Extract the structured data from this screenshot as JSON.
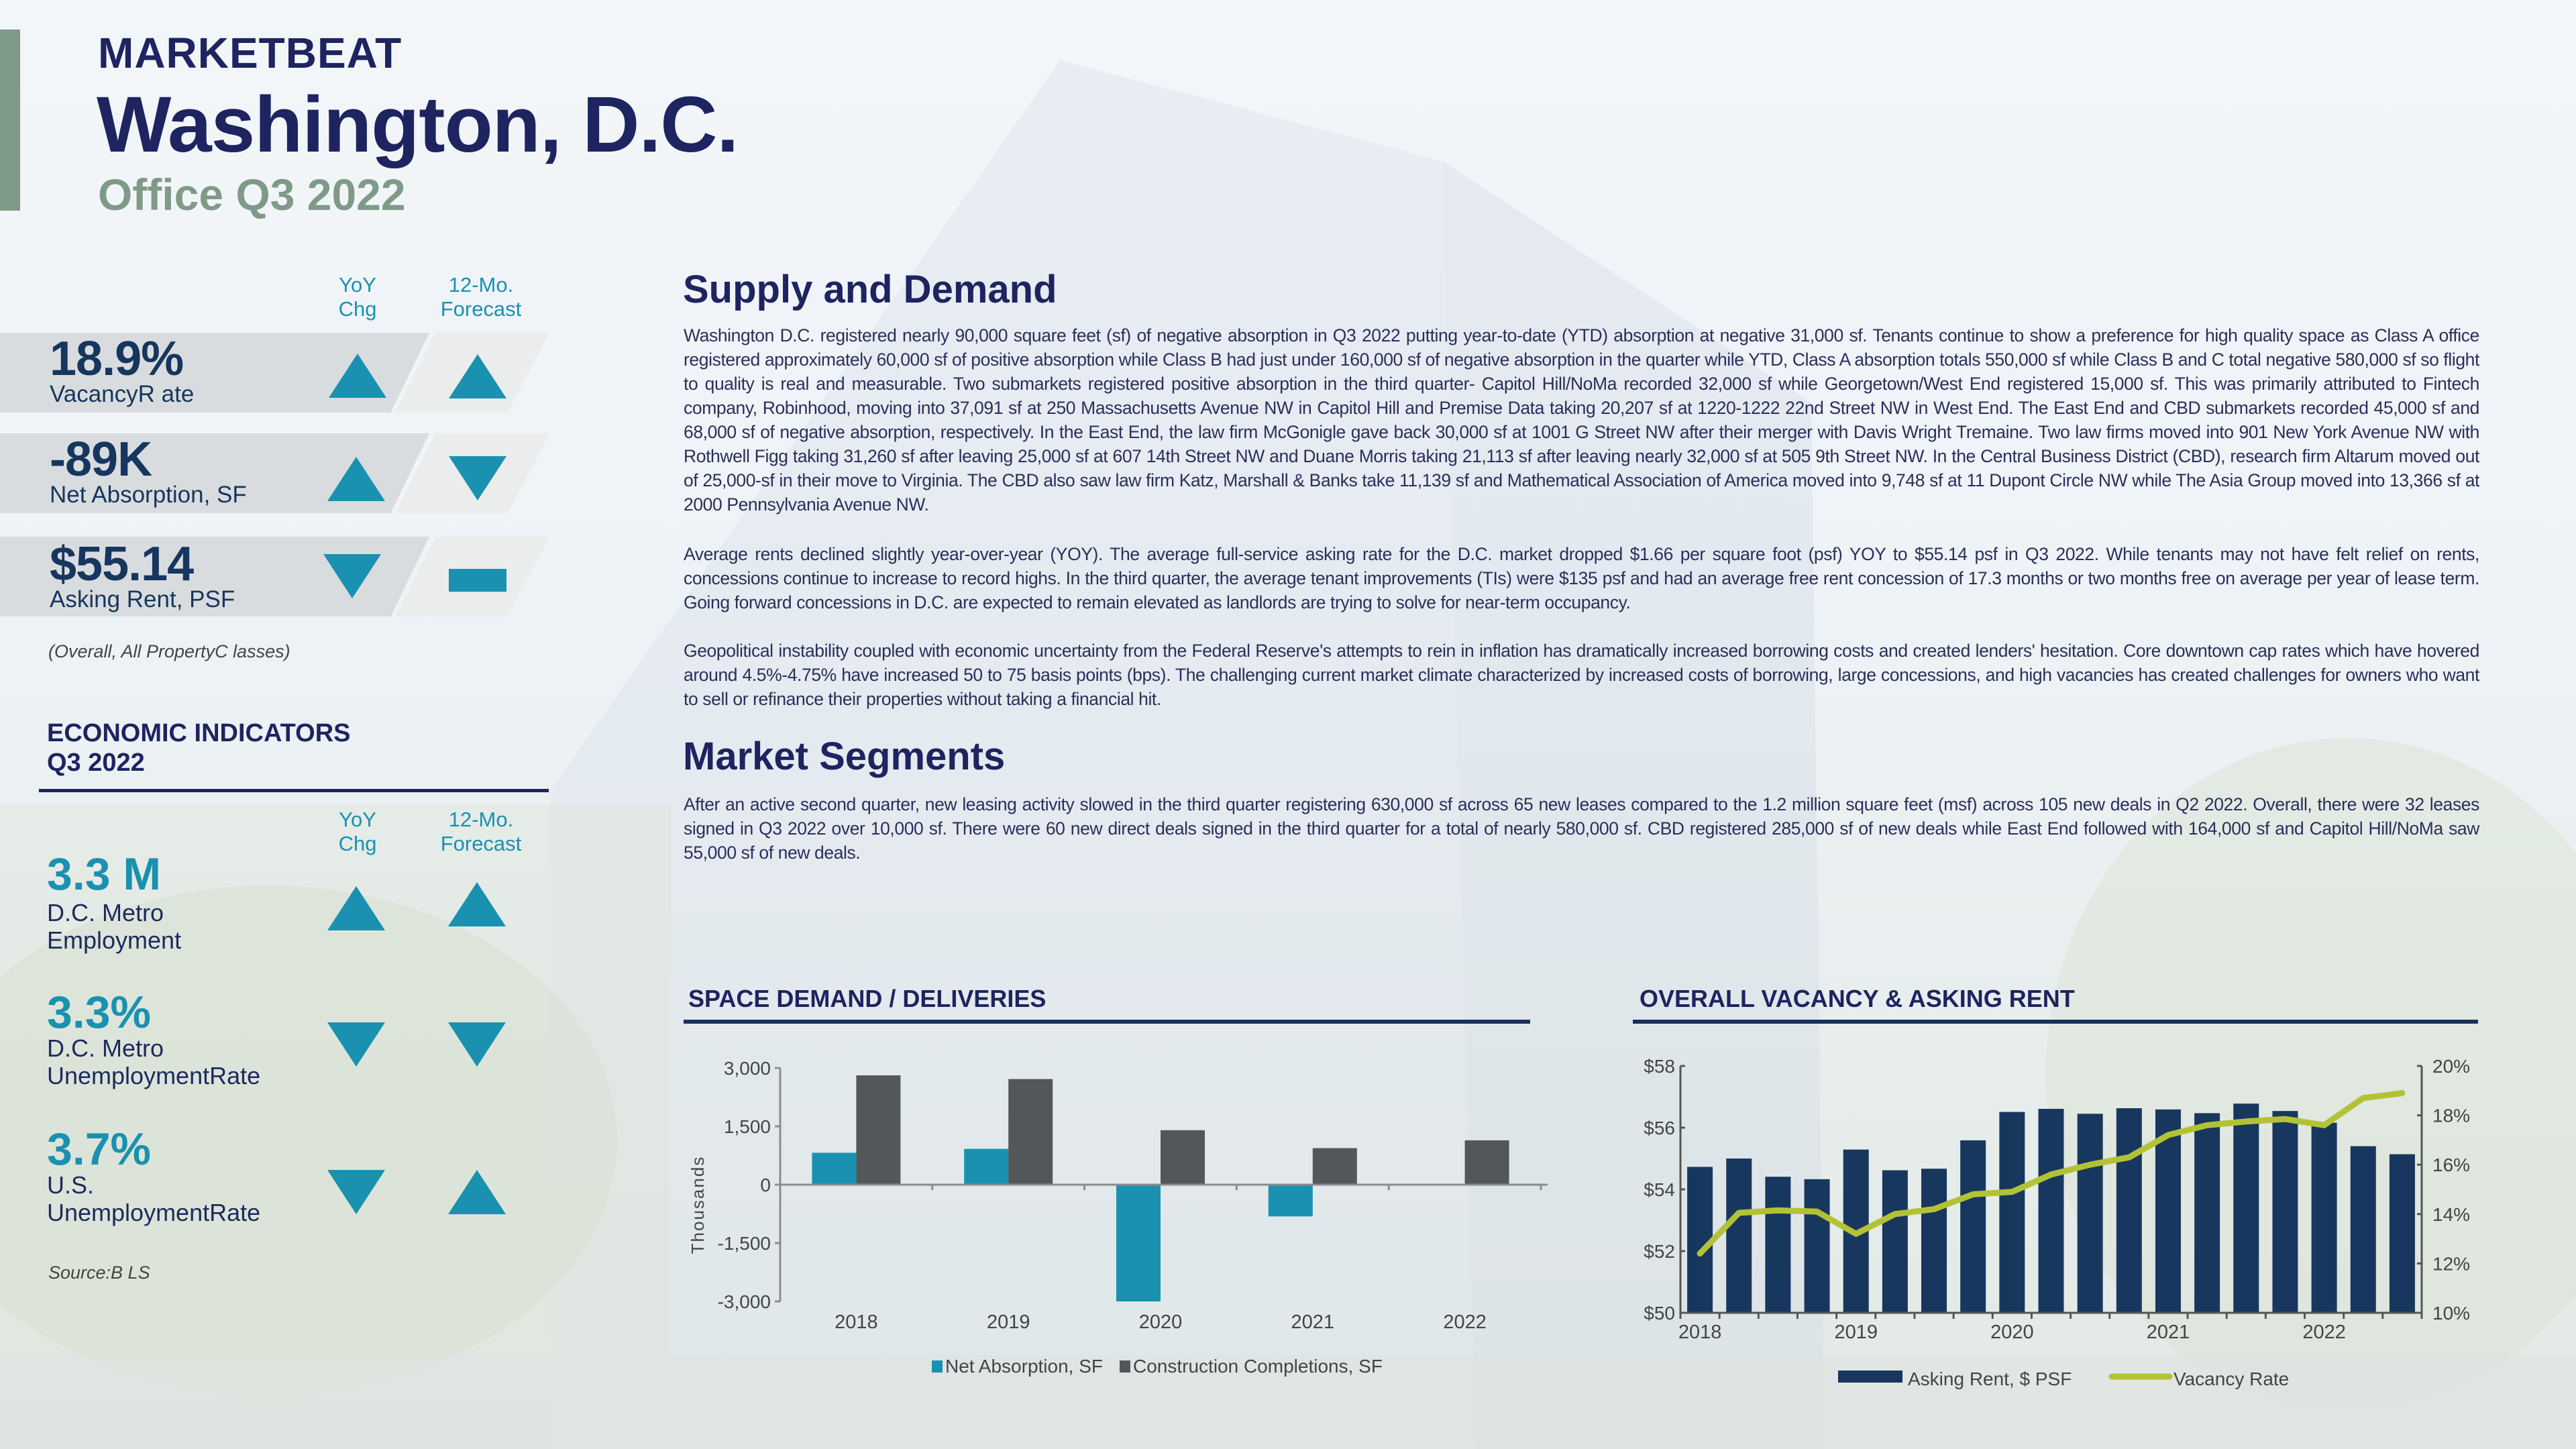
{
  "header": {
    "brand": "MARKETBEAT",
    "city": "Washington, D.C.",
    "subtitle": "Office Q3 2022"
  },
  "stats": {
    "col_yoy": [
      "YoY",
      "Chg"
    ],
    "col_forecast": [
      "12-Mo.",
      "Forecast"
    ],
    "rows": [
      {
        "value": "18.9%",
        "label": "VacancyR ate",
        "yoy": "up",
        "forecast": "up"
      },
      {
        "value": "-89K",
        "label": "Net Absorption, SF",
        "yoy": "up",
        "forecast": "down"
      },
      {
        "value": "$55.14",
        "label": "Asking Rent, PSF",
        "yoy": "down",
        "forecast": "flat"
      }
    ],
    "note": "(Overall, All PropertyC lasses)"
  },
  "economic": {
    "title": "ECONOMIC INDICATORS",
    "period": "Q3 2022",
    "col_yoy": [
      "YoY",
      "Chg"
    ],
    "col_forecast": [
      "12-Mo.",
      "Forecast"
    ],
    "rows": [
      {
        "value": "3.3 M",
        "label1": "D.C. Metro",
        "label2": "Employment",
        "yoy": "up",
        "forecast": "up"
      },
      {
        "value": "3.3%",
        "label1": "D.C. Metro",
        "label2": "UnemploymentRate",
        "yoy": "down",
        "forecast": "down"
      },
      {
        "value": "3.7%",
        "label1": "U.S.",
        "label2": "UnemploymentRate",
        "yoy": "down",
        "forecast": "up"
      }
    ],
    "source": "Source:B LS"
  },
  "supply": {
    "title": "Supply and Demand",
    "paragraphs": [
      "Washington D.C. registered nearly 90,000 square feet (sf) of negative absorption in Q3 2022 putting year-to-date (YTD) absorption at negative 31,000 sf. Tenants continue to show a preference for high quality space as Class A office registered approximately 60,000 sf of positive absorption while Class B had just under 160,000 sf of negative absorption in the quarter while YTD, Class A absorption totals 550,000 sf while Class B and C total negative 580,000 sf so flight to quality is real and measurable. Two submarkets registered positive absorption in the third quarter- Capitol Hill/NoMa recorded 32,000 sf while Georgetown/West End registered 15,000 sf. This was primarily attributed to Fintech company, Robinhood, moving into 37,091 sf at 250 Massachusetts Avenue NW in Capitol Hill and Premise Data taking 20,207 sf at 1220-1222 22nd Street NW in West End. The East End and CBD submarkets recorded 45,000 sf and 68,000 sf of negative absorption, respectively. In the East End, the law firm McGonigle gave back 30,000 sf at 1001 G Street NW after their merger with Davis Wright Tremaine. Two law firms moved into 901 New York Avenue NW with Rothwell Figg taking 31,260 sf after leaving 25,000 sf at 607 14th Street NW and Duane Morris taking 21,113 sf after leaving nearly 32,000 sf at 505 9th Street NW. In the Central Business District (CBD), research firm Altarum moved out of 25,000-sf in their move to Virginia. The CBD also saw law firm Katz, Marshall & Banks take 11,139 sf and Mathematical Association of America moved into 9,748 sf at 11 Dupont Circle NW while The Asia Group moved into 13,366 sf at 2000 Pennsylvania Avenue NW.",
      "Average rents declined slightly year-over-year (YOY). The average full-service asking rate for the D.C. market dropped $1.66 per square foot (psf) YOY to $55.14 psf in Q3 2022. While tenants may not have felt relief on rents, concessions continue to increase to record highs. In the third quarter, the average tenant improvements (TIs) were $135 psf and had an average free rent concession of 17.3 months or two months free on average per year of lease term. Going forward concessions in D.C. are expected to remain elevated as landlords are trying to solve for near-term occupancy.",
      "Geopolitical instability coupled with economic uncertainty from the Federal Reserve's attempts to rein in inflation has dramatically increased borrowing costs and created lenders' hesitation. Core downtown cap rates which have hovered around 4.5%-4.75% have increased 50 to 75 basis points (bps). The challenging current market climate characterized by increased costs of borrowing, large concessions, and high vacancies has created challenges for owners who want to sell or refinance their properties without taking a financial hit."
    ]
  },
  "segments": {
    "title": "Market Segments",
    "paragraph": "After an active second quarter, new leasing activity slowed in the third quarter registering 630,000 sf across 65 new leases compared to the 1.2 million square feet (msf) across 105 new deals in Q2 2022. Overall, there were 32 leases signed in Q3 2022 over 10,000 sf. There were 60 new direct deals signed in the third quarter for a total of nearly 580,000 sf. CBD registered 285,000 sf of new deals while East End followed with 164,000 sf and Capitol Hill/NoMa saw 55,000 sf of new deals."
  },
  "chart_data": [
    {
      "type": "bar",
      "title": "SPACE DEMAND / DELIVERIES",
      "ylabel": "Thousands",
      "categories": [
        "2018",
        "2019",
        "2020",
        "2021",
        "2022"
      ],
      "series": [
        {
          "name": "Net Absorption, SF",
          "color": "#1a91b0",
          "values": [
            820,
            920,
            -3000,
            -815,
            0
          ]
        },
        {
          "name": "Construction Completions, SF",
          "color": "#53575a",
          "values": [
            2810,
            2715,
            1400,
            940,
            1140
          ]
        }
      ],
      "yticks": [
        "3,000",
        "1,500",
        "0",
        "-1,500",
        "-3,000"
      ],
      "ytick_values": [
        3000,
        1500,
        0,
        -1500,
        -3000
      ],
      "ylim": [
        -3000,
        3000
      ],
      "legend": "bottom"
    },
    {
      "type": "bar+line",
      "title": "OVERALL VACANCY & ASKING RENT",
      "x": [
        "2018 Q1",
        "2018 Q2",
        "2018 Q3",
        "2018 Q4",
        "2019 Q1",
        "2019 Q2",
        "2019 Q3",
        "2019 Q4",
        "2020 Q1",
        "2020 Q2",
        "2020 Q3",
        "2020 Q4",
        "2021 Q1",
        "2021 Q2",
        "2021 Q3",
        "2021 Q4",
        "2022 Q1",
        "2022 Q2",
        "2022 Q3"
      ],
      "xtick_labels": [
        "2018",
        "2019",
        "2020",
        "2021",
        "2022"
      ],
      "series": [
        {
          "name": "Asking Rent, $ PSF",
          "color": "#17375e",
          "axis": "left",
          "values": [
            54.73,
            55.0,
            54.41,
            54.33,
            55.29,
            54.62,
            54.67,
            55.59,
            56.51,
            56.61,
            56.45,
            56.63,
            56.59,
            56.47,
            56.78,
            56.54,
            56.16,
            55.4,
            55.14
          ]
        },
        {
          "name": "Vacancy Rate",
          "color": "#b3c234",
          "axis": "right",
          "values": [
            12.4,
            14.05,
            14.15,
            14.1,
            13.2,
            14.0,
            14.2,
            14.8,
            14.9,
            15.6,
            16.0,
            16.3,
            17.2,
            17.6,
            17.75,
            17.85,
            17.6,
            18.7,
            18.9
          ]
        }
      ],
      "yticks_left": [
        "$58",
        "$56",
        "$54",
        "$52",
        "$50"
      ],
      "yticks_left_values": [
        58,
        56,
        54,
        52,
        50
      ],
      "yticks_right": [
        "20%",
        "18%",
        "16%",
        "14%",
        "12%",
        "10%"
      ],
      "yticks_right_values": [
        20,
        18,
        16,
        14,
        12,
        10
      ],
      "ylim_left": [
        50,
        58
      ],
      "ylim_right": [
        10,
        20
      ],
      "legend": "bottom"
    }
  ]
}
